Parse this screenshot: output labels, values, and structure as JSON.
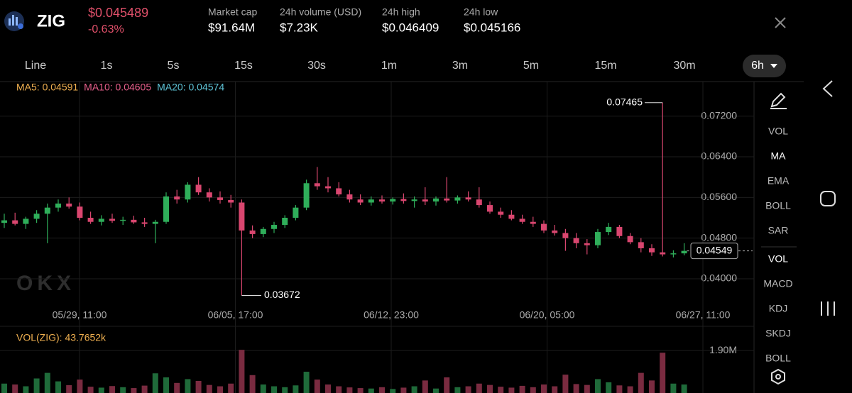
{
  "header": {
    "symbol": "ZIG",
    "price": "$0.045489",
    "change": "-0.63%",
    "stats": [
      {
        "label": "Market cap",
        "value": "$91.64M"
      },
      {
        "label": "24h volume (USD)",
        "value": "$7.23K"
      },
      {
        "label": "24h high",
        "value": "$0.046409"
      },
      {
        "label": "24h low",
        "value": "$0.045166"
      }
    ]
  },
  "timeframes": [
    {
      "label": "Line",
      "active": false
    },
    {
      "label": "1s",
      "active": false
    },
    {
      "label": "5s",
      "active": false
    },
    {
      "label": "15s",
      "active": false
    },
    {
      "label": "30s",
      "active": false
    },
    {
      "label": "1m",
      "active": false
    },
    {
      "label": "3m",
      "active": false
    },
    {
      "label": "5m",
      "active": false
    },
    {
      "label": "15m",
      "active": false
    },
    {
      "label": "30m",
      "active": false
    },
    {
      "label": "6h",
      "active": true
    }
  ],
  "sidebar": [
    {
      "label": "VOL",
      "active": false
    },
    {
      "label": "MA",
      "active": true
    },
    {
      "label": "EMA",
      "active": false
    },
    {
      "label": "BOLL",
      "active": false
    },
    {
      "label": "SAR",
      "active": false
    },
    {
      "label": "VOL",
      "active": true
    },
    {
      "label": "MACD",
      "active": false
    },
    {
      "label": "KDJ",
      "active": false
    },
    {
      "label": "SKDJ",
      "active": false
    },
    {
      "label": "BOLL",
      "active": false
    }
  ],
  "chart_data": {
    "type": "candlestick",
    "watermark": "OKX",
    "ma_legend": [
      {
        "text": "MA5: 0.04591",
        "color": "#f0b050"
      },
      {
        "text": "MA10: 0.04605",
        "color": "#e8608c"
      },
      {
        "text": "MA20: 0.04574",
        "color": "#5ec3d6"
      }
    ],
    "x_labels": [
      "05/29, 11:00",
      "06/05, 17:00",
      "06/12, 23:00",
      "06/20, 05:00",
      "06/27, 11:00"
    ],
    "ylim": [
      0.03483,
      0.0788
    ],
    "yticks": [
      {
        "value": 0.04,
        "label": "0.04000"
      },
      {
        "value": 0.048,
        "label": "0.04800"
      },
      {
        "value": 0.056,
        "label": "0.05600"
      },
      {
        "value": 0.064,
        "label": "0.06400"
      },
      {
        "value": 0.072,
        "label": "0.07200"
      }
    ],
    "up_color": "#2fae5a",
    "down_color": "#d9466f",
    "high_index": 61,
    "low_index": 22,
    "last_index": 63,
    "candles": [
      [
        0.051,
        0.0528,
        0.05,
        0.0515
      ],
      [
        0.0515,
        0.053,
        0.0505,
        0.0508
      ],
      [
        0.0508,
        0.0522,
        0.0498,
        0.0518
      ],
      [
        0.0518,
        0.0535,
        0.051,
        0.0528
      ],
      [
        0.0528,
        0.0548,
        0.047,
        0.054
      ],
      [
        0.054,
        0.0556,
        0.0532,
        0.0548
      ],
      [
        0.0548,
        0.056,
        0.0538,
        0.0542
      ],
      [
        0.0542,
        0.055,
        0.0515,
        0.052
      ],
      [
        0.052,
        0.0532,
        0.0508,
        0.0512
      ],
      [
        0.0512,
        0.0525,
        0.0505,
        0.0518
      ],
      [
        0.0518,
        0.0528,
        0.051,
        0.0514
      ],
      [
        0.0514,
        0.0522,
        0.0506,
        0.0516
      ],
      [
        0.0516,
        0.0524,
        0.0508,
        0.0511
      ],
      [
        0.0511,
        0.052,
        0.0502,
        0.0508
      ],
      [
        0.0508,
        0.0516,
        0.047,
        0.0512
      ],
      [
        0.0512,
        0.057,
        0.0508,
        0.0562
      ],
      [
        0.0562,
        0.0575,
        0.0548,
        0.0556
      ],
      [
        0.0556,
        0.059,
        0.055,
        0.0585
      ],
      [
        0.0585,
        0.06,
        0.0565,
        0.057
      ],
      [
        0.057,
        0.0578,
        0.0552,
        0.056
      ],
      [
        0.056,
        0.0572,
        0.0548,
        0.0555
      ],
      [
        0.0555,
        0.0565,
        0.054,
        0.055
      ],
      [
        0.055,
        0.0556,
        0.03672,
        0.0495
      ],
      [
        0.0495,
        0.0505,
        0.048,
        0.0488
      ],
      [
        0.0488,
        0.0502,
        0.0482,
        0.0498
      ],
      [
        0.0498,
        0.0512,
        0.049,
        0.0506
      ],
      [
        0.0506,
        0.0525,
        0.05,
        0.052
      ],
      [
        0.052,
        0.0545,
        0.0515,
        0.054
      ],
      [
        0.054,
        0.0595,
        0.0535,
        0.0588
      ],
      [
        0.0588,
        0.062,
        0.0575,
        0.0582
      ],
      [
        0.0582,
        0.06,
        0.057,
        0.0578
      ],
      [
        0.0578,
        0.059,
        0.0562,
        0.0566
      ],
      [
        0.0566,
        0.0575,
        0.055,
        0.0556
      ],
      [
        0.0556,
        0.0566,
        0.0545,
        0.055
      ],
      [
        0.055,
        0.0562,
        0.0544,
        0.0556
      ],
      [
        0.0556,
        0.0564,
        0.0548,
        0.0552
      ],
      [
        0.0552,
        0.056,
        0.0546,
        0.0557
      ],
      [
        0.0557,
        0.0568,
        0.0548,
        0.0553
      ],
      [
        0.0553,
        0.0562,
        0.054,
        0.0556
      ],
      [
        0.0556,
        0.058,
        0.0545,
        0.0552
      ],
      [
        0.0552,
        0.0562,
        0.0544,
        0.0558
      ],
      [
        0.0558,
        0.06,
        0.055,
        0.0554
      ],
      [
        0.0554,
        0.0564,
        0.0548,
        0.056
      ],
      [
        0.056,
        0.0572,
        0.0552,
        0.0556
      ],
      [
        0.0556,
        0.058,
        0.054,
        0.0545
      ],
      [
        0.0545,
        0.0552,
        0.0528,
        0.0532
      ],
      [
        0.0532,
        0.054,
        0.052,
        0.0526
      ],
      [
        0.0526,
        0.0535,
        0.0515,
        0.0518
      ],
      [
        0.0518,
        0.0526,
        0.0508,
        0.0512
      ],
      [
        0.0512,
        0.0522,
        0.0502,
        0.0508
      ],
      [
        0.0508,
        0.0515,
        0.049,
        0.0495
      ],
      [
        0.0495,
        0.0506,
        0.0485,
        0.049
      ],
      [
        0.049,
        0.0498,
        0.0455,
        0.048
      ],
      [
        0.048,
        0.049,
        0.046,
        0.047
      ],
      [
        0.047,
        0.0478,
        0.0448,
        0.0466
      ],
      [
        0.0466,
        0.0498,
        0.046,
        0.0492
      ],
      [
        0.0492,
        0.051,
        0.0486,
        0.0502
      ],
      [
        0.0502,
        0.0506,
        0.048,
        0.0484
      ],
      [
        0.0484,
        0.049,
        0.0468,
        0.0472
      ],
      [
        0.0472,
        0.048,
        0.0452,
        0.046
      ],
      [
        0.046,
        0.0468,
        0.0445,
        0.0452
      ],
      [
        0.0452,
        0.07465,
        0.0444,
        0.0448
      ],
      [
        0.0448,
        0.0456,
        0.0442,
        0.045
      ],
      [
        0.045,
        0.047,
        0.0446,
        0.04549
      ]
    ],
    "volume_label": "VOL(ZIG): 43.7652k",
    "volume_ylim": [
      0,
      2980000
    ],
    "volume_ticks": [
      {
        "value": 1900000,
        "label": "1.90M"
      }
    ],
    "volumes": [
      420000,
      380000,
      300000,
      650000,
      900000,
      520000,
      350000,
      600000,
      280000,
      240000,
      310000,
      260000,
      220000,
      330000,
      880000,
      700000,
      450000,
      620000,
      540000,
      360000,
      300000,
      420000,
      1930000,
      800000,
      380000,
      300000,
      260000,
      340000,
      950000,
      600000,
      380000,
      300000,
      250000,
      220000,
      200000,
      260000,
      180000,
      240000,
      300000,
      560000,
      200000,
      700000,
      260000,
      300000,
      420000,
      360000,
      280000,
      240000,
      320000,
      260000,
      380000,
      300000,
      820000,
      400000,
      360000,
      620000,
      480000,
      340000,
      300000,
      900000,
      560000,
      1800000,
      420000,
      380000
    ]
  }
}
